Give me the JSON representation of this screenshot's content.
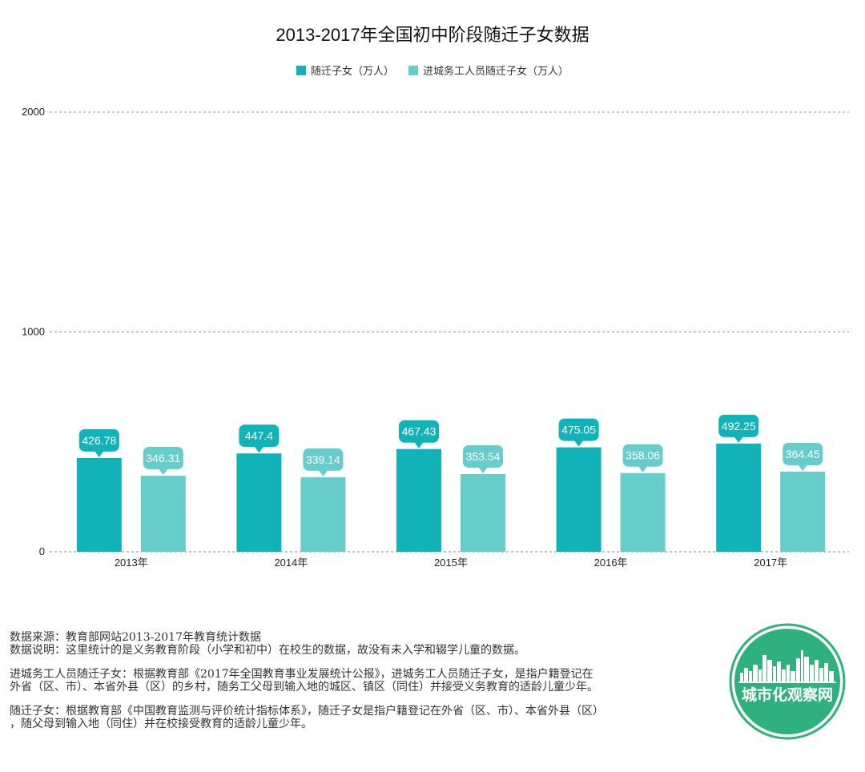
{
  "title": "2013-2017年全国初中阶段随迁子女数据",
  "colors": {
    "series1": "#12b3b8",
    "series2": "#66cdcb",
    "logo_green": "#2fb07f"
  },
  "chart_data": {
    "type": "bar",
    "categories": [
      "2013年",
      "2014年",
      "2015年",
      "2016年",
      "2017年"
    ],
    "series": [
      {
        "name": "随迁子女（万人）",
        "values": [
          426.78,
          447.4,
          467.43,
          475.05,
          492.25
        ]
      },
      {
        "name": "进城务工人员随迁子女（万人）",
        "values": [
          346.31,
          339.14,
          353.54,
          358.06,
          364.45
        ]
      }
    ],
    "ylim": [
      0,
      2000
    ],
    "yticks": [
      0,
      1000,
      2000
    ],
    "grid": true,
    "legend": "top-center"
  },
  "notes": {
    "source": "数据来源：教育部网站2013-2017年教育统计数据",
    "explain": "数据说明：这里统计的是义务教育阶段（小学和初中）在校生的数据，故没有未入学和辍学儿童的数据。",
    "def1_line1": "进城务工人员随迁子女：根据教育部《2017年全国教育事业发展统计公报》，进城务工人员随迁子女，是指户籍登记在",
    "def1_line2": "外省（区、市）、本省外县（区）的乡村，随务工父母到输入地的城区、镇区（同住）并接受义务教育的适龄儿童少年。",
    "def2_line1": "随迁子女：根据教育部《中国教育监测与评价统计指标体系》，随迁子女是指户籍登记在外省（区、市）、本省外县（区）",
    "def2_line2": "，随父母到输入地（同住）并在校接受教育的适龄儿童少年。"
  },
  "logo": {
    "text": "城市化观察网",
    "icon": "city-skyline-icon"
  }
}
